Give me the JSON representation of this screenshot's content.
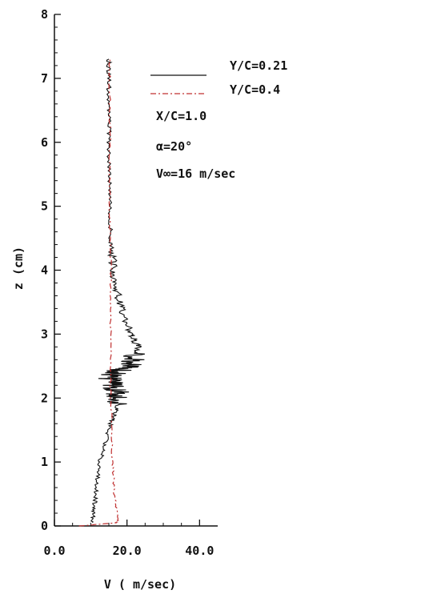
{
  "chart_data": {
    "type": "line",
    "xlabel": "V ( m/sec)",
    "ylabel": "z (cm)",
    "xlim": [
      0,
      45
    ],
    "ylim": [
      0,
      8
    ],
    "x_ticks": [
      "0.0",
      "20.0",
      "40.0"
    ],
    "x_tick_values": [
      0,
      20,
      40
    ],
    "y_ticks": [
      "0",
      "1",
      "2",
      "3",
      "4",
      "5",
      "6",
      "7",
      "8"
    ],
    "y_tick_values": [
      0,
      1,
      2,
      3,
      4,
      5,
      6,
      7,
      8
    ],
    "legend_position": "top-right",
    "series": [
      {
        "name": "Y/C=0.21",
        "color": "#111111",
        "style": "solid",
        "z": [
          0.05,
          0.3,
          0.6,
          1.0,
          1.3,
          1.6,
          1.8,
          2.0,
          2.1,
          2.2,
          2.3,
          2.4,
          2.5,
          2.6,
          2.8,
          3.0,
          3.3,
          3.6,
          3.9,
          4.2,
          4.5,
          5.0,
          5.5,
          6.0,
          6.5,
          7.0,
          7.3
        ],
        "v": [
          10.5,
          11.0,
          11.5,
          12.5,
          14.0,
          15.5,
          17.0,
          18.0,
          17.5,
          16.0,
          15.0,
          16.5,
          21.0,
          22.0,
          23.0,
          21.0,
          19.0,
          17.5,
          16.5,
          16.0,
          15.5,
          15.3,
          15.2,
          15.1,
          15.0,
          15.0,
          15.0
        ]
      },
      {
        "name": "Y/C=0.4",
        "color": "#c03030",
        "style": "dash-dot",
        "z": [
          0.0,
          0.05,
          0.1,
          0.5,
          1.0,
          2.0,
          3.0,
          4.0,
          5.0,
          6.0,
          7.0,
          7.3
        ],
        "v": [
          7.0,
          17.0,
          17.5,
          16.5,
          16.0,
          15.5,
          15.5,
          15.5,
          15.3,
          15.3,
          15.2,
          15.2
        ]
      }
    ],
    "annotations": [
      "X/C=1.0",
      "α=20°",
      "V∞=16 m/sec"
    ]
  },
  "colors": {
    "axis": "#111111",
    "background": "#ffffff"
  }
}
